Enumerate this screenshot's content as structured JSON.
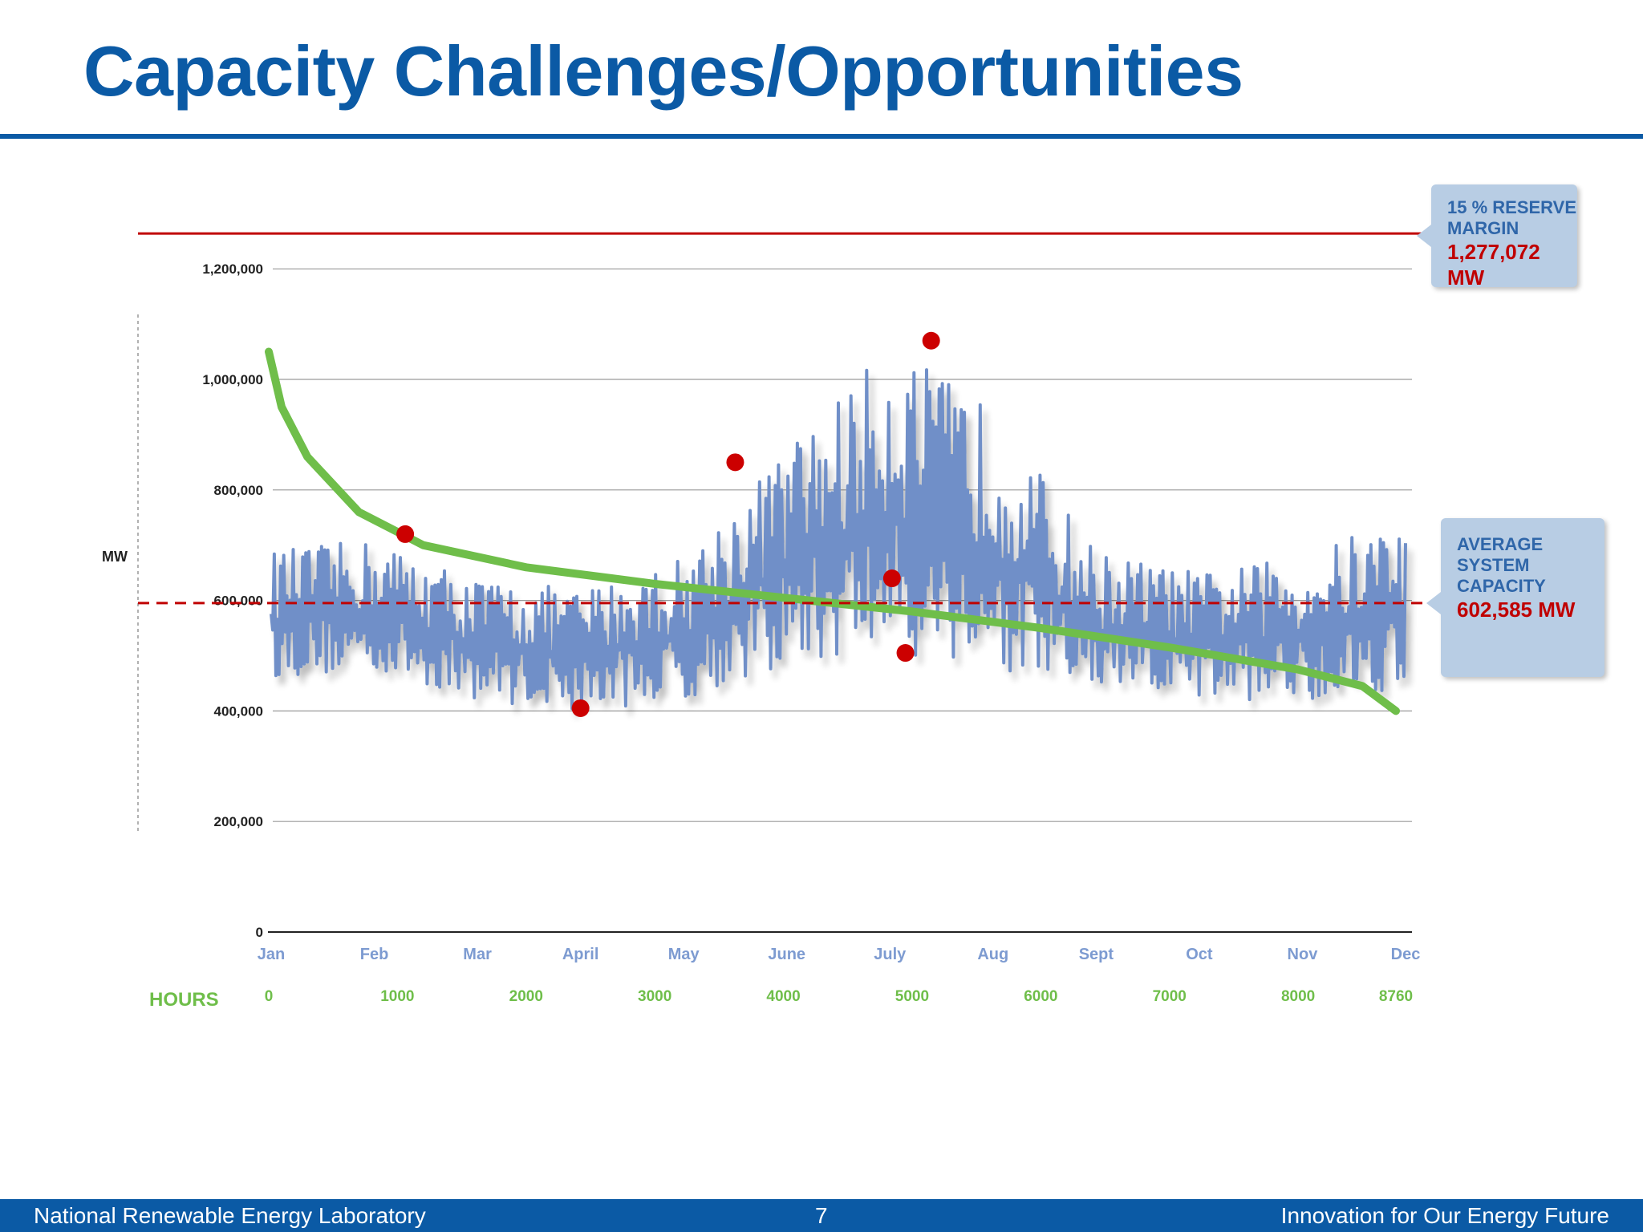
{
  "slide": {
    "title": "Capacity Challenges/Opportunities",
    "page_number": "7",
    "footer_left": "National Renewable Energy Laboratory",
    "footer_right": "Innovation for Our Energy Future"
  },
  "colors": {
    "brand_blue": "#0b5aa5",
    "load_series": "#6f8fc8",
    "duration_curve": "#6fbe4a",
    "reserve_line": "#c00000",
    "peak_markers": "#cc0000",
    "hours_text": "#6fbe4a",
    "month_text": "#7d9bd1"
  },
  "callouts": {
    "reserve": {
      "label_line1": "15 % RESERVE",
      "label_line2": "MARGIN",
      "value": "1,277,072 MW"
    },
    "average": {
      "label_line1": "AVERAGE",
      "label_line2": "SYSTEM",
      "label_line3": "CAPACITY",
      "value": "602,585 MW"
    }
  },
  "chart_data": {
    "type": "line",
    "ylabel": "MW",
    "hours_label": "HOURS",
    "ylim": [
      0,
      1300000
    ],
    "y_ticks": [
      0,
      200000,
      400000,
      600000,
      800000,
      1000000,
      1200000
    ],
    "y_tick_labels": [
      "0",
      "200,000",
      "400,000",
      "600,000",
      "800,000",
      "1,000,000",
      "1,200,000"
    ],
    "months": [
      "Jan",
      "Feb",
      "Mar",
      "April",
      "May",
      "June",
      "July",
      "Aug",
      "Sept",
      "Oct",
      "Nov",
      "Dec"
    ],
    "hours_ticks": [
      "0",
      "1000",
      "2000",
      "3000",
      "4000",
      "5000",
      "6000",
      "7000",
      "8000",
      "8760"
    ],
    "grid": true,
    "reserve_margin_mw": 1277072,
    "average_capacity_mw": 602585,
    "series": [
      {
        "type": "line",
        "description": "hourly system load",
        "month_envelope_mw": {
          "months": [
            "Jan",
            "Feb",
            "Mar",
            "April",
            "May",
            "June",
            "July",
            "Aug",
            "Sept",
            "Oct",
            "Nov",
            "Dec"
          ],
          "low": [
            460000,
            470000,
            420000,
            400000,
            420000,
            480000,
            500000,
            470000,
            430000,
            420000,
            420000,
            440000
          ],
          "high": [
            690000,
            710000,
            640000,
            620000,
            680000,
            880000,
            1060000,
            950000,
            690000,
            650000,
            680000,
            760000
          ]
        }
      },
      {
        "type": "line",
        "description": "load duration curve",
        "x_hours": [
          0,
          100,
          300,
          700,
          1200,
          2000,
          3000,
          4000,
          5000,
          6000,
          7000,
          8000,
          8500,
          8760
        ],
        "y_mw": [
          1050000,
          950000,
          860000,
          760000,
          700000,
          660000,
          630000,
          605000,
          580000,
          550000,
          515000,
          475000,
          445000,
          400000
        ]
      },
      {
        "type": "scatter",
        "description": "monthly peak markers",
        "points": [
          {
            "month": "Feb",
            "mw": 720000
          },
          {
            "month": "April",
            "mw": 405000
          },
          {
            "month": "May",
            "mw": 850000
          },
          {
            "month": "July",
            "mw": 640000
          },
          {
            "month": "July",
            "mw": 505000
          },
          {
            "month": "July",
            "mw": 1070000
          }
        ]
      }
    ]
  }
}
